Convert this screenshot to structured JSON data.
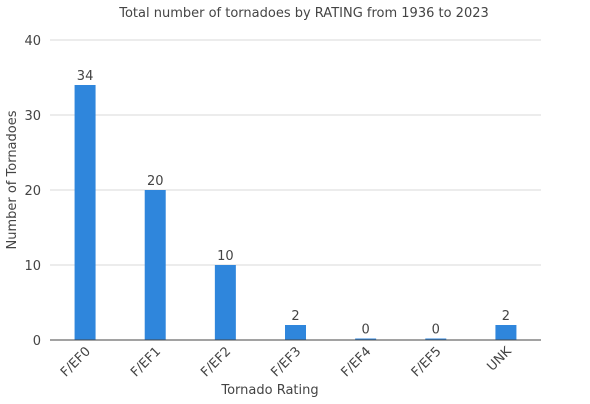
{
  "chart_data": {
    "type": "bar",
    "title": "Total number of tornadoes by RATING from 1936 to 2023",
    "xlabel": "Tornado Rating",
    "ylabel": "Number of Tornadoes",
    "categories": [
      "F/EF0",
      "F/EF1",
      "F/EF2",
      "F/EF3",
      "F/EF4",
      "F/EF5",
      "UNK"
    ],
    "values": [
      34,
      20,
      10,
      2,
      0,
      0,
      2
    ],
    "ylim": [
      0,
      40
    ],
    "yticks": [
      0,
      10,
      20,
      30,
      40
    ],
    "grid": true,
    "legend": "none",
    "colors": {
      "bar": "#2f86dc",
      "grid": "#d9d9d9",
      "axis": "#444444",
      "text": "#444444"
    }
  }
}
